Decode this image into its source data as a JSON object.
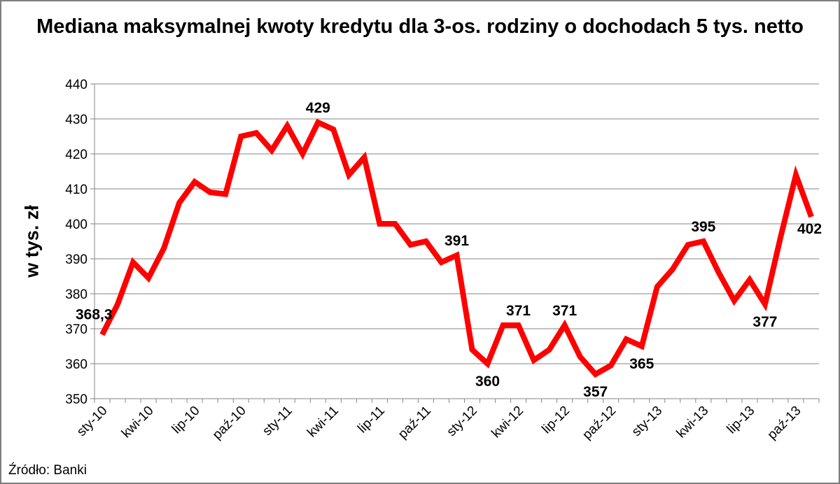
{
  "source": "Źródło: Banki",
  "chart_data": {
    "type": "line",
    "title": "Mediana maksymalnej kwoty kredytu dla 3-os. rodziny o dochodach 5 tys. netto",
    "xlabel": "",
    "ylabel": "w tys. zł",
    "ylim": [
      350,
      440
    ],
    "yticks": [
      350,
      360,
      370,
      380,
      390,
      400,
      410,
      420,
      430,
      440
    ],
    "grid": true,
    "legend": "none",
    "color": "#ff0000",
    "tick_labels": [
      "sty-10",
      "kwi-10",
      "lip-10",
      "paź-10",
      "sty-11",
      "kwi-11",
      "lip-11",
      "paź-11",
      "sty-12",
      "kwi-12",
      "lip-12",
      "paź-12",
      "sty-13",
      "kwi-13",
      "lip-13",
      "paź-13"
    ],
    "x": [
      "sty-10",
      "lut-10",
      "mar-10",
      "kwi-10",
      "maj-10",
      "cze-10",
      "lip-10",
      "sie-10",
      "wrz-10",
      "paź-10",
      "lis-10",
      "gru-10",
      "sty-11",
      "lut-11",
      "mar-11",
      "kwi-11",
      "maj-11",
      "cze-11",
      "lip-11",
      "sie-11",
      "wrz-11",
      "paź-11",
      "lis-11",
      "gru-11",
      "sty-12",
      "lut-12",
      "mar-12",
      "kwi-12",
      "maj-12",
      "cze-12",
      "lip-12",
      "sie-12",
      "wrz-12",
      "paź-12",
      "lis-12",
      "gru-12",
      "sty-13",
      "lut-13",
      "mar-13",
      "kwi-13",
      "maj-13",
      "cze-13",
      "lip-13",
      "sie-13",
      "wrz-13",
      "paź-13",
      "lis-13"
    ],
    "values": [
      368.3,
      377,
      389,
      384.5,
      393,
      406,
      412,
      409,
      408.5,
      425,
      426,
      421,
      428,
      420,
      429,
      427,
      414,
      419,
      400,
      400,
      394,
      395,
      389,
      391,
      364,
      360,
      371,
      371,
      361,
      364,
      371,
      362,
      357,
      359.5,
      367,
      365,
      382,
      387,
      394,
      395,
      386,
      378,
      384,
      377,
      396,
      414,
      402
    ],
    "data_labels": [
      {
        "index": 0,
        "text": "368,3"
      },
      {
        "index": 14,
        "text": "429"
      },
      {
        "index": 23,
        "text": "391"
      },
      {
        "index": 25,
        "text": "360"
      },
      {
        "index": 27,
        "text": "371"
      },
      {
        "index": 30,
        "text": "371"
      },
      {
        "index": 32,
        "text": "357"
      },
      {
        "index": 35,
        "text": "365"
      },
      {
        "index": 39,
        "text": "395"
      },
      {
        "index": 43,
        "text": "377"
      },
      {
        "index": 46,
        "text": "402"
      }
    ]
  }
}
